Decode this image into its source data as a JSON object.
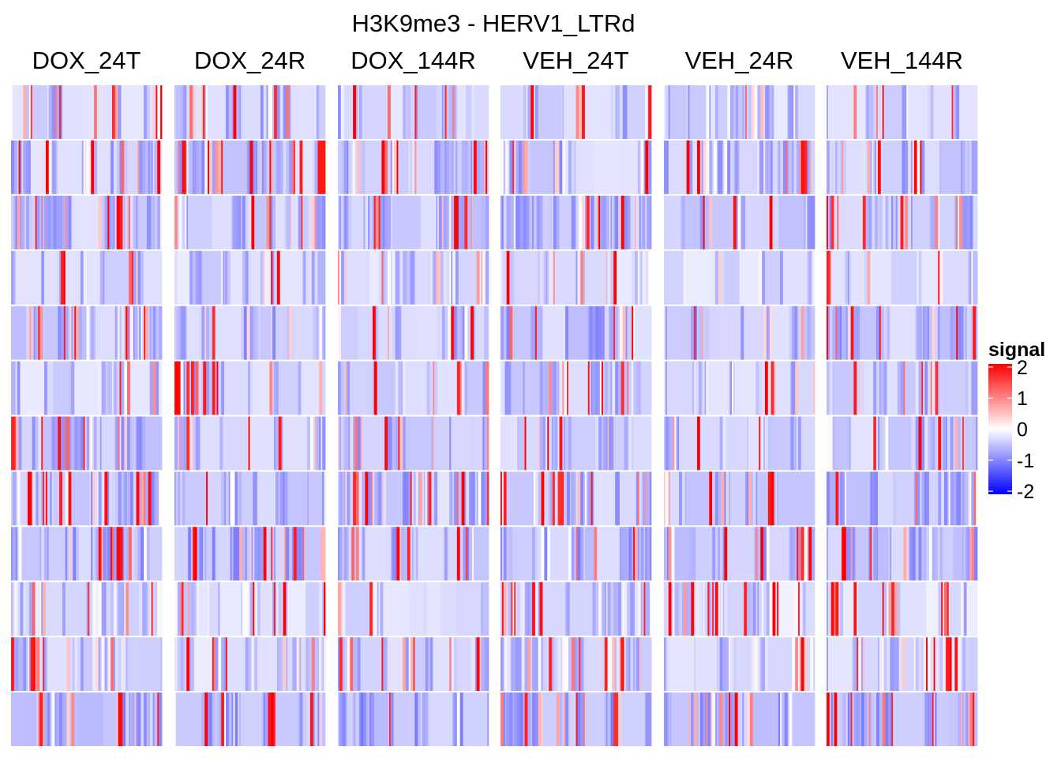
{
  "chart_data": {
    "type": "heatmap",
    "title": "H3K9me3 - HERV1_LTRd",
    "panels": [
      "DOX_24T",
      "DOX_24R",
      "DOX_144R",
      "VEH_24T",
      "VEH_24R",
      "VEH_144R"
    ],
    "row_groups": 12,
    "columns_per_panel": 100,
    "legend": {
      "title": "signal",
      "ticks": [
        2,
        1,
        0,
        -1,
        -2
      ],
      "tick_labels": [
        "2",
        "1",
        "0",
        "-1",
        "-2"
      ],
      "range": [
        -2.1,
        2.1
      ],
      "placement": "right"
    },
    "color_scale": {
      "low": "#0000ff",
      "mid": "#ffffff",
      "high": "#ff0000"
    },
    "values_note": "row-group mean signal per column; estimated from image",
    "group_means": [
      -0.55,
      -0.6,
      -0.62,
      -0.5,
      -0.65,
      -0.55,
      -0.6,
      -0.62,
      -0.68,
      -0.45,
      -0.5,
      -0.72
    ],
    "seed": 97
  }
}
